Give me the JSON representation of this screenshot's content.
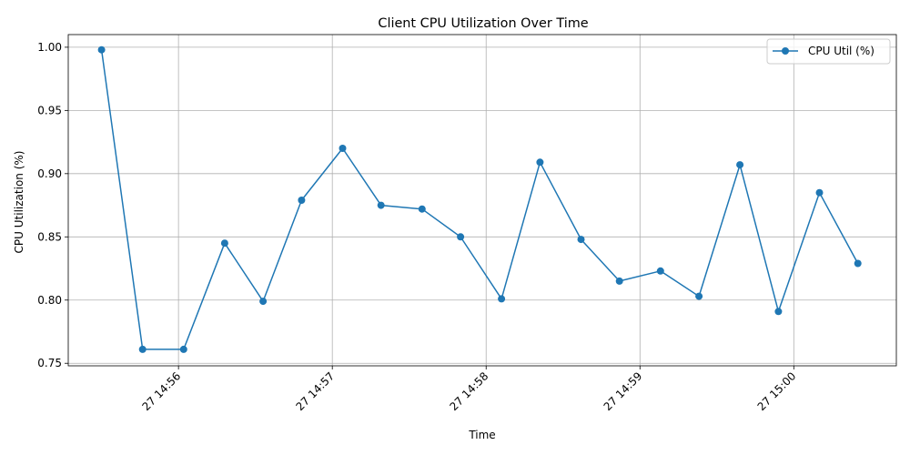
{
  "chart_data": {
    "type": "line",
    "title": "Client CPU Utilization Over Time",
    "xlabel": "Time",
    "ylabel": "CPU Utilization (%)",
    "x": [
      "14:55:30",
      "14:55:46",
      "14:56:02",
      "14:56:18",
      "14:56:33",
      "14:56:48",
      "14:57:04",
      "14:57:19",
      "14:57:35",
      "14:57:50",
      "14:58:06",
      "14:58:21",
      "14:58:37",
      "14:58:52",
      "14:59:08",
      "14:59:23",
      "14:59:39",
      "14:59:54",
      "15:00:10",
      "15:00:25"
    ],
    "x_tick_labels": [
      "27 14:56",
      "27 14:57",
      "27 14:58",
      "27 14:59",
      "27 15:00"
    ],
    "x_tick_times": [
      "14:56:00",
      "14:57:00",
      "14:58:00",
      "14:59:00",
      "15:00:00"
    ],
    "xlim": [
      "14:55:17",
      "15:00:40"
    ],
    "series": [
      {
        "name": "CPU Util (%)",
        "color": "#1f77b4",
        "values": [
          0.998,
          0.761,
          0.761,
          0.845,
          0.799,
          0.879,
          0.92,
          0.875,
          0.872,
          0.85,
          0.801,
          0.909,
          0.848,
          0.815,
          0.823,
          0.803,
          0.907,
          0.791,
          0.885,
          0.829
        ]
      }
    ],
    "y_ticks": [
      "0.75",
      "0.80",
      "0.85",
      "0.90",
      "0.95",
      "1.00"
    ],
    "ylim": [
      0.748,
      1.01
    ],
    "grid": true,
    "legend_position": "top-right"
  }
}
